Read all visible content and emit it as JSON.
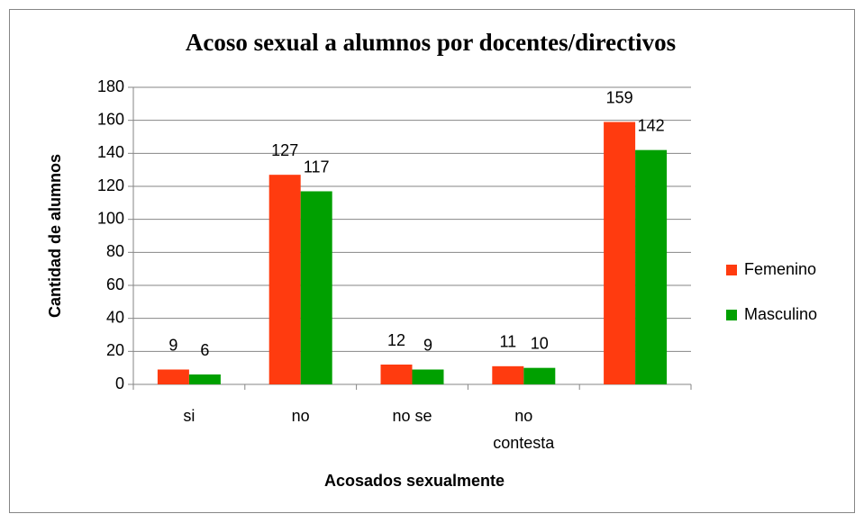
{
  "chart_data": {
    "type": "bar",
    "title": "Acoso sexual a alumnos por docentes/directivos",
    "x_label": "Acosados sexualmente",
    "y_label": "Cantidad de alumnos",
    "categories": [
      "si",
      "no",
      "no se",
      "no contesta",
      null
    ],
    "series": [
      {
        "name": "Femenino",
        "color": "#ff3b0f",
        "values": [
          9,
          127,
          12,
          11,
          159
        ]
      },
      {
        "name": "Masculino",
        "color": "#00a000",
        "values": [
          6,
          117,
          9,
          10,
          142
        ]
      }
    ],
    "ylim": [
      0,
      180
    ],
    "yticks": [
      0,
      20,
      40,
      60,
      80,
      100,
      120,
      140,
      160,
      180
    ],
    "grid": true,
    "legend": "right"
  }
}
